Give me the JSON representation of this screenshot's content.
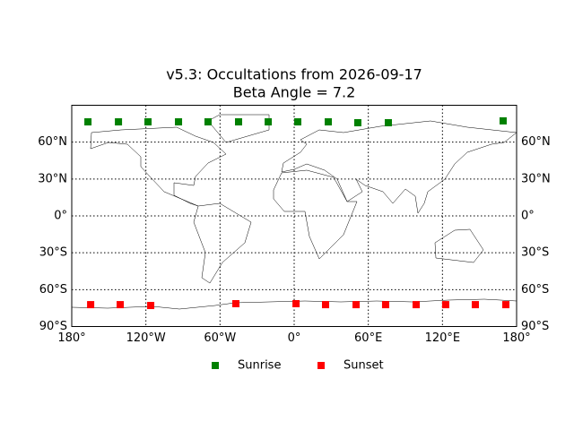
{
  "chart_data": {
    "type": "scatter",
    "title": "v5.3: Occultations from 2026-09-17",
    "subtitle": "Beta Angle = 7.2",
    "xlim": [
      -180,
      180
    ],
    "ylim": [
      -90,
      90
    ],
    "xticks": [
      {
        "value": -180,
        "label": "180°"
      },
      {
        "value": -120,
        "label": "120°W"
      },
      {
        "value": -60,
        "label": "60°W"
      },
      {
        "value": 0,
        "label": "0°"
      },
      {
        "value": 60,
        "label": "60°E"
      },
      {
        "value": 120,
        "label": "120°E"
      },
      {
        "value": 180,
        "label": "180°"
      }
    ],
    "yticks": [
      {
        "value": -90,
        "label": "90°S"
      },
      {
        "value": -60,
        "label": "60°S"
      },
      {
        "value": -30,
        "label": "30°S"
      },
      {
        "value": 0,
        "label": "0°"
      },
      {
        "value": 30,
        "label": "30°N"
      },
      {
        "value": 60,
        "label": "60°N"
      }
    ],
    "grid": true,
    "legend": "bottom",
    "series": [
      {
        "name": "Sunrise",
        "color": "#008000",
        "x": [
          -166.9,
          -142.2,
          -118.3,
          -93.6,
          -69.7,
          -45,
          -21,
          2.9,
          27.6,
          51.5,
          76.2,
          169.1
        ],
        "values": [
          76.5,
          76.5,
          76.5,
          76.5,
          76.5,
          76.5,
          76.5,
          76.5,
          76.5,
          75.8,
          75.8,
          77.3
        ]
      },
      {
        "name": "Sunset",
        "color": "#ff0000",
        "x": [
          -164.7,
          -140.8,
          -116.1,
          -47.2,
          1.5,
          25.4,
          50.1,
          74,
          98.7,
          122.6,
          146.6,
          171.3
        ],
        "values": [
          -72.2,
          -72.2,
          -72.9,
          -71.4,
          -71.4,
          -72.2,
          -72.2,
          -72.2,
          -72.2,
          -72.2,
          -72.2,
          -72.2
        ]
      }
    ]
  }
}
